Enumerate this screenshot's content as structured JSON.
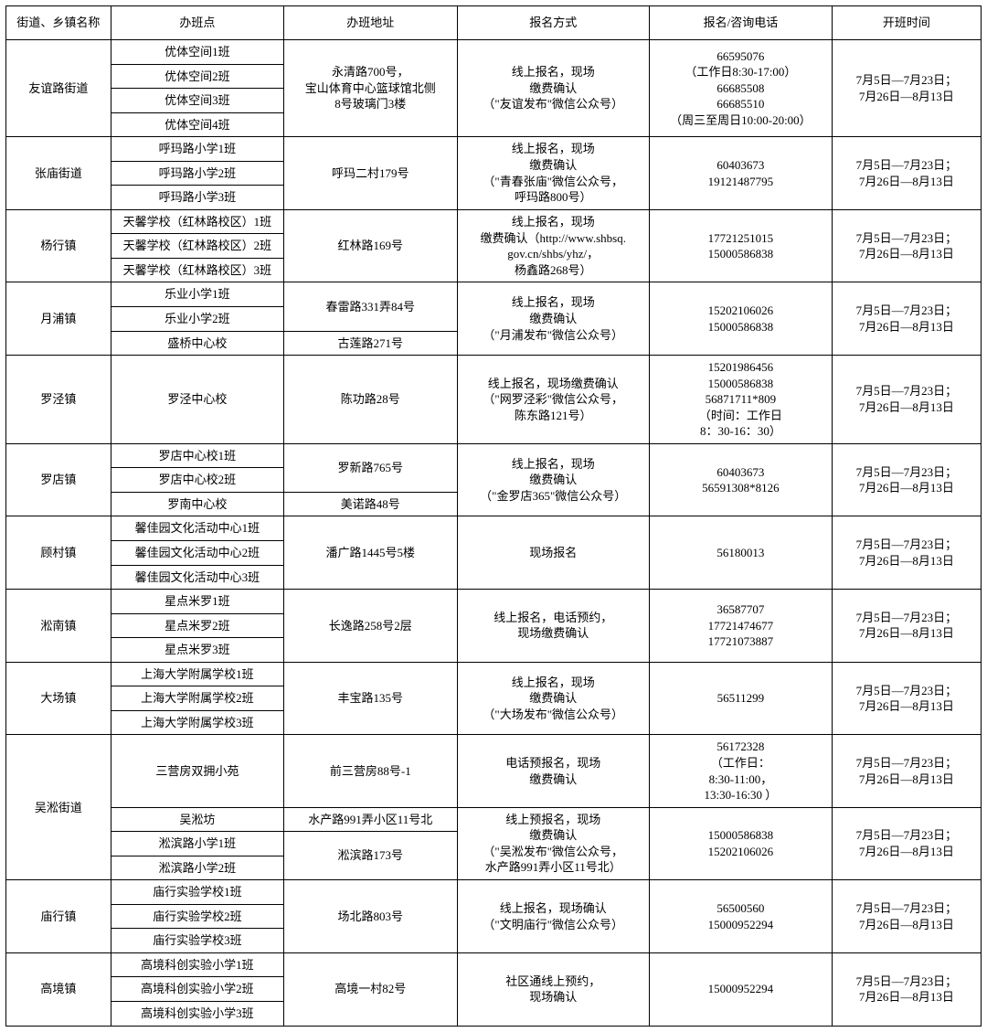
{
  "headers": [
    "街道、乡镇名称",
    "办班点",
    "办班地址",
    "报名方式",
    "报名/咨询电话",
    "开班时间"
  ],
  "schedule_default": "7月5日—7月23日；\n7月26日—8月13日",
  "groups": [
    {
      "district": "友谊路街道",
      "classes": [
        "优体空间1班",
        "优体空间2班",
        "优体空间3班",
        "优体空间4班"
      ],
      "addr": "永清路700号，\n宝山体育中心篮球馆北侧\n8号玻璃门3楼",
      "method": "线上报名，现场\n缴费确认\n（\"友谊发布\"微信公众号）",
      "phone": "66595076\n（工作日8:30-17:00）\n66685508\n66685510\n（周三至周日10:00-20:00）"
    },
    {
      "district": "张庙街道",
      "classes": [
        "呼玛路小学1班",
        "呼玛路小学2班",
        "呼玛路小学3班"
      ],
      "addr": "呼玛二村179号",
      "method": "线上报名，现场\n缴费确认\n（\"青春张庙\"微信公众号，\n呼玛路800号）",
      "phone": "60403673\n19121487795"
    },
    {
      "district": "杨行镇",
      "classes": [
        "天馨学校（红林路校区）1班",
        "天馨学校（红林路校区）2班",
        "天馨学校（红林路校区）3班"
      ],
      "addr": "红林路169号",
      "method": "线上报名，现场\n缴费确认（http://www.shbsq.\ngov.cn/shbs/yhz/，\n杨鑫路268号）",
      "phone": "17721251015\n15000586838"
    },
    {
      "district": "月浦镇",
      "rows": [
        {
          "class": "乐业小学1班",
          "addr": "春雷路331弄84号",
          "addr_span": 2
        },
        {
          "class": "乐业小学2班"
        },
        {
          "class": "盛桥中心校",
          "addr": "古莲路271号",
          "addr_span": 1
        }
      ],
      "method": "线上报名，现场\n缴费确认\n（\"月浦发布\"微信公众号）",
      "phone": "15202106026\n15000586838"
    },
    {
      "district": "罗泾镇",
      "classes": [
        "罗泾中心校"
      ],
      "addr": "陈功路28号",
      "method": "线上报名，现场缴费确认\n（\"网罗泾彩\"微信公众号，\n陈东路121号）",
      "phone": "15201986456\n15000586838\n56871711*809\n（时间：工作日\n8：30-16：30）"
    },
    {
      "district": "罗店镇",
      "rows": [
        {
          "class": "罗店中心校1班",
          "addr": "罗新路765号",
          "addr_span": 2
        },
        {
          "class": "罗店中心校2班"
        },
        {
          "class": "罗南中心校",
          "addr": "美诺路48号",
          "addr_span": 1
        }
      ],
      "method": "线上报名，现场\n缴费确认\n（\"金罗店365\"微信公众号）",
      "phone": "60403673\n56591308*8126"
    },
    {
      "district": "顾村镇",
      "classes": [
        "馨佳园文化活动中心1班",
        "馨佳园文化活动中心2班",
        "馨佳园文化活动中心3班"
      ],
      "addr": "潘广路1445号5楼",
      "method": "现场报名",
      "phone": "56180013"
    },
    {
      "district": "淞南镇",
      "classes": [
        "星点米罗1班",
        "星点米罗2班",
        "星点米罗3班"
      ],
      "addr": "长逸路258号2层",
      "method": "线上报名，电话预约，\n现场缴费确认",
      "phone": "36587707\n17721474677\n17721073887"
    },
    {
      "district": "大场镇",
      "classes": [
        "上海大学附属学校1班",
        "上海大学附属学校2班",
        "上海大学附属学校3班"
      ],
      "addr": "丰宝路135号",
      "method": "线上报名，现场\n缴费确认\n（\"大场发布\"微信公众号）",
      "phone": "56511299"
    },
    {
      "district": "吴淞街道",
      "wusong": {
        "r1": {
          "class": "三营房双拥小苑",
          "addr": "前三营房88号-1",
          "method": "电话预报名，现场\n缴费确认",
          "phone": "56172328\n（工作日：\n8:30-11:00，\n13:30-16:30 ）"
        },
        "r2": {
          "class": "吴淞坊",
          "addr": "水产路991弄小区11号北"
        },
        "r3": {
          "class": "淞滨路小学1班",
          "addr": "淞滨路173号"
        },
        "r4": {
          "class": "淞滨路小学2班"
        },
        "method2": "线上预报名，现场\n缴费确认\n（\"吴淞发布\"微信公众号，\n水产路991弄小区11号北）",
        "phone2": "15000586838\n15202106026"
      }
    },
    {
      "district": "庙行镇",
      "classes": [
        "庙行实验学校1班",
        "庙行实验学校2班",
        "庙行实验学校3班"
      ],
      "addr": "场北路803号",
      "method": "线上报名，现场确认\n（\"文明庙行\"微信公众号）",
      "phone": "56500560\n15000952294"
    },
    {
      "district": "高境镇",
      "classes": [
        "高境科创实验小学1班",
        "高境科创实验小学2班",
        "高境科创实验小学3班"
      ],
      "addr": "高境一村82号",
      "method": "社区通线上预约，\n现场确认",
      "phone": "15000952294"
    }
  ]
}
